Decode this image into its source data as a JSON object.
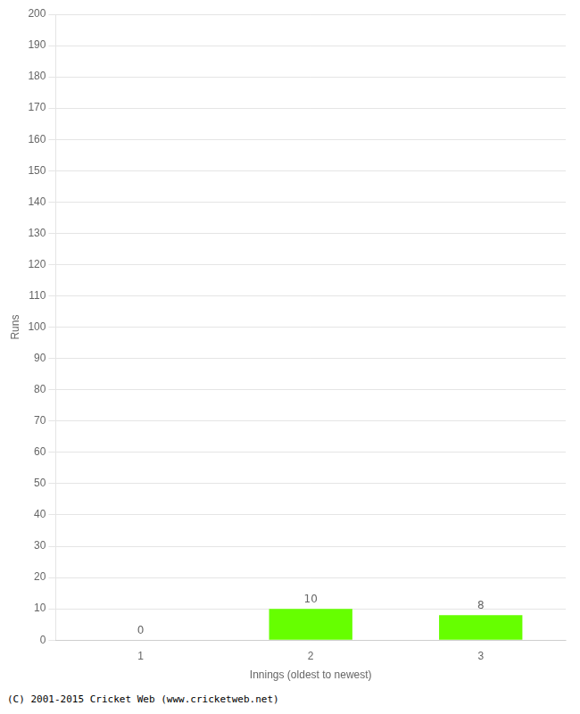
{
  "chart_data": {
    "type": "bar",
    "categories": [
      "1",
      "2",
      "3"
    ],
    "values": [
      0,
      10,
      8
    ],
    "color": "#66ff00",
    "xlabel": "Innings (oldest to newest)",
    "ylabel": "Runs",
    "ylim": [
      0,
      200
    ],
    "yticks": [
      0,
      10,
      20,
      30,
      40,
      50,
      60,
      70,
      80,
      90,
      100,
      110,
      120,
      130,
      140,
      150,
      160,
      170,
      180,
      190,
      200
    ],
    "grid": true,
    "data_labels": true,
    "footer": "(C) 2001-2015 Cricket Web (www.cricketweb.net)"
  }
}
